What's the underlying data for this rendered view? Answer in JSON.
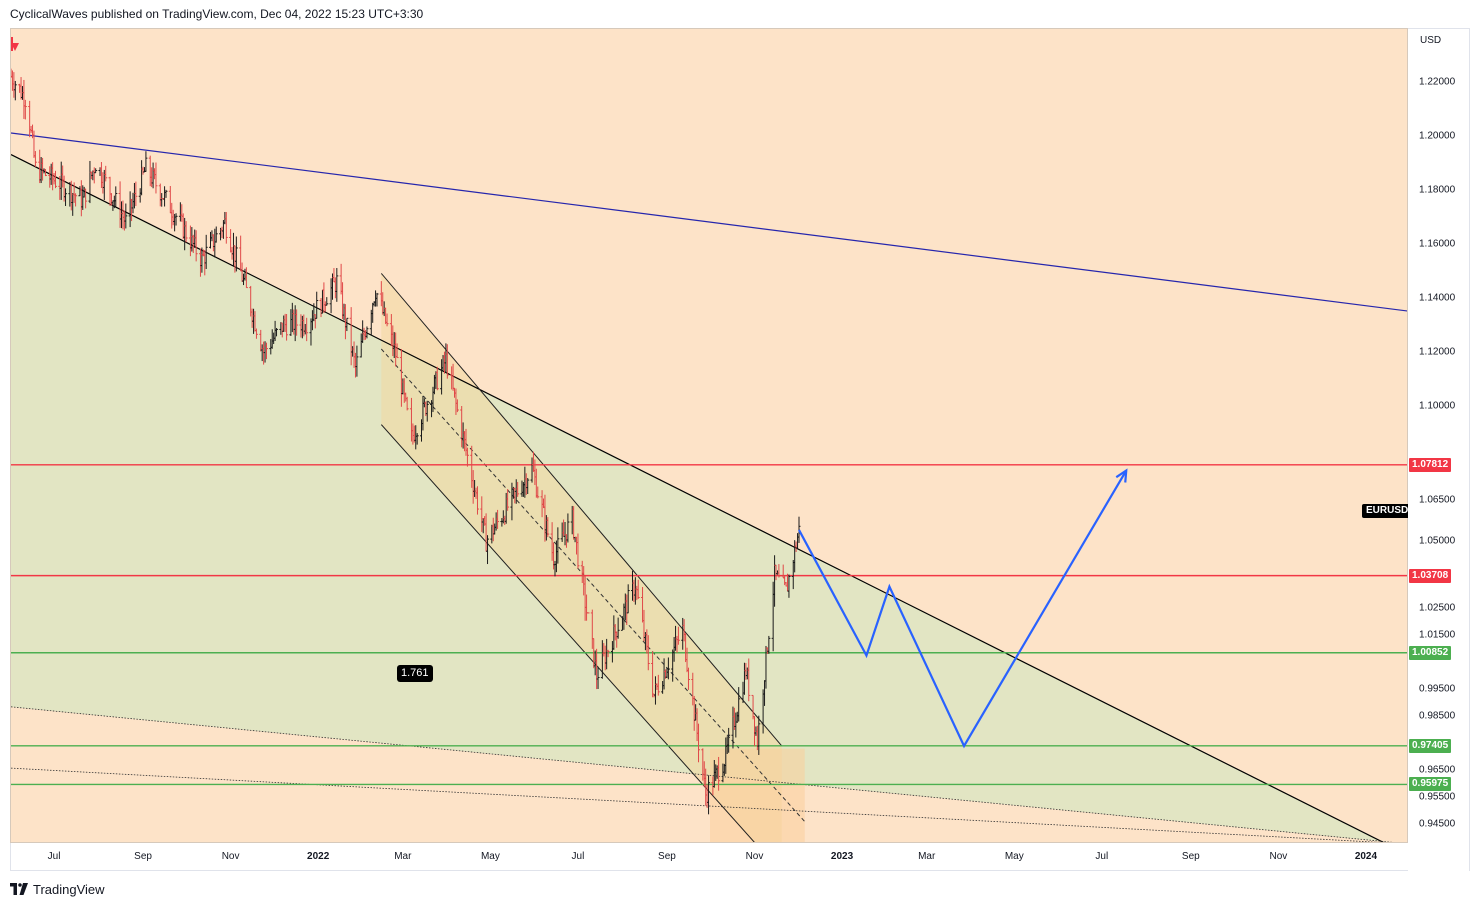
{
  "header": {
    "text": "CyclicalWaves published on TradingView.com, Dec 04, 2022 15:23 UTC+3:30"
  },
  "footer": {
    "brand": "TradingView",
    "logo_icon": "tradingview-logo-icon"
  },
  "symbol": "EURUSD",
  "chart_data": {
    "type": "candlestick",
    "title": "",
    "currency": "USD",
    "timeframe": "daily",
    "x_range": [
      "2021-06-01",
      "2024-01-31"
    ],
    "y_range": [
      0.9377,
      1.2395
    ],
    "x_ticks": [
      {
        "label": "Jul",
        "date": "2021-07-01",
        "bold": false
      },
      {
        "label": "Sep",
        "date": "2021-09-01",
        "bold": false
      },
      {
        "label": "Nov",
        "date": "2021-11-01",
        "bold": false
      },
      {
        "label": "2022",
        "date": "2022-01-01",
        "bold": true
      },
      {
        "label": "Mar",
        "date": "2022-03-01",
        "bold": false
      },
      {
        "label": "May",
        "date": "2022-05-01",
        "bold": false
      },
      {
        "label": "Jul",
        "date": "2022-07-01",
        "bold": false
      },
      {
        "label": "Sep",
        "date": "2022-09-01",
        "bold": false
      },
      {
        "label": "Nov",
        "date": "2022-11-01",
        "bold": false
      },
      {
        "label": "2023",
        "date": "2023-01-01",
        "bold": true
      },
      {
        "label": "Mar",
        "date": "2023-03-01",
        "bold": false
      },
      {
        "label": "May",
        "date": "2023-05-01",
        "bold": false
      },
      {
        "label": "Jul",
        "date": "2023-07-01",
        "bold": false
      },
      {
        "label": "Sep",
        "date": "2023-09-01",
        "bold": false
      },
      {
        "label": "Nov",
        "date": "2023-11-01",
        "bold": false
      },
      {
        "label": "2024",
        "date": "2024-01-01",
        "bold": true
      }
    ],
    "y_ticks": [
      {
        "label": "1.22000",
        "value": 1.22
      },
      {
        "label": "1.20000",
        "value": 1.2
      },
      {
        "label": "1.18000",
        "value": 1.18
      },
      {
        "label": "1.16000",
        "value": 1.16
      },
      {
        "label": "1.14000",
        "value": 1.14
      },
      {
        "label": "1.12000",
        "value": 1.12
      },
      {
        "label": "1.10000",
        "value": 1.1
      },
      {
        "label": "1.06500",
        "value": 1.065
      },
      {
        "label": "1.05000",
        "value": 1.05
      },
      {
        "label": "1.02500",
        "value": 1.025
      },
      {
        "label": "1.01500",
        "value": 1.015
      },
      {
        "label": "0.99500",
        "value": 0.995
      },
      {
        "label": "0.98500",
        "value": 0.985
      },
      {
        "label": "0.96500",
        "value": 0.965
      },
      {
        "label": "0.95500",
        "value": 0.955
      },
      {
        "label": "0.94500",
        "value": 0.945
      }
    ],
    "horizontal_levels": [
      {
        "label": "1.07812",
        "value": 1.07812,
        "color": "#f23645"
      },
      {
        "label": "1.03708",
        "value": 1.03708,
        "color": "#f23645"
      },
      {
        "label": "1.00852",
        "value": 1.00852,
        "color": "#4caf50"
      },
      {
        "label": "0.97405",
        "value": 0.97405,
        "color": "#4caf50"
      },
      {
        "label": "0.95975",
        "value": 0.95975,
        "color": "#4caf50"
      }
    ],
    "price_path": [
      [
        "2021-06-01",
        1.222
      ],
      [
        "2021-06-12",
        1.213
      ],
      [
        "2021-06-18",
        1.188
      ],
      [
        "2021-07-06",
        1.182
      ],
      [
        "2021-07-21",
        1.176
      ],
      [
        "2021-07-30",
        1.19
      ],
      [
        "2021-08-20",
        1.168
      ],
      [
        "2021-09-03",
        1.188
      ],
      [
        "2021-09-22",
        1.172
      ],
      [
        "2021-10-12",
        1.154
      ],
      [
        "2021-10-28",
        1.168
      ],
      [
        "2021-11-10",
        1.146
      ],
      [
        "2021-11-24",
        1.12
      ],
      [
        "2021-12-08",
        1.13
      ],
      [
        "2021-12-24",
        1.131
      ],
      [
        "2022-01-14",
        1.146
      ],
      [
        "2022-01-27",
        1.114
      ],
      [
        "2022-02-10",
        1.143
      ],
      [
        "2022-02-24",
        1.119
      ],
      [
        "2022-03-07",
        1.088
      ],
      [
        "2022-03-31",
        1.117
      ],
      [
        "2022-04-28",
        1.05
      ],
      [
        "2022-05-30",
        1.077
      ],
      [
        "2022-06-14",
        1.044
      ],
      [
        "2022-06-27",
        1.058
      ],
      [
        "2022-07-14",
        1.0
      ],
      [
        "2022-08-10",
        1.034
      ],
      [
        "2022-08-23",
        0.993
      ],
      [
        "2022-09-12",
        1.017
      ],
      [
        "2022-09-28",
        0.956
      ],
      [
        "2022-10-12",
        0.97
      ],
      [
        "2022-10-26",
        1.002
      ],
      [
        "2022-11-03",
        0.976
      ],
      [
        "2022-11-15",
        1.037
      ],
      [
        "2022-11-23",
        1.031
      ],
      [
        "2022-12-02",
        1.054
      ]
    ],
    "projection": [
      [
        "2022-12-02",
        1.054
      ],
      [
        "2023-01-18",
        1.0075
      ],
      [
        "2023-02-03",
        1.033
      ],
      [
        "2023-03-27",
        0.974
      ],
      [
        "2023-07-18",
        1.076
      ]
    ],
    "trendlines": [
      {
        "name": "upper-resistance-line",
        "color": "#2626ad",
        "from": [
          "2021-06-01",
          1.201
        ],
        "to": [
          "2024-01-31",
          1.135
        ]
      },
      {
        "name": "descending-support-line",
        "color": "#000000",
        "from": [
          "2021-06-01",
          1.193
        ],
        "to": [
          "2024-01-18",
          0.937
        ]
      },
      {
        "name": "lower-dotted-line-1",
        "color": "#333333",
        "from": [
          "2021-06-01",
          0.9885
        ],
        "to": [
          "2024-01-31",
          0.9377
        ]
      },
      {
        "name": "lower-dotted-line-2",
        "color": "#333333",
        "from": [
          "2021-06-01",
          0.9658
        ],
        "to": [
          "2024-01-31",
          0.9377
        ]
      }
    ],
    "channel": {
      "upper": {
        "from": [
          "2022-02-14",
          1.149
        ],
        "to": [
          "2022-11-20",
          0.974
        ]
      },
      "lower": {
        "from": [
          "2022-02-14",
          1.093
        ],
        "to": [
          "2022-11-02",
          0.9377
        ]
      },
      "mid": {
        "from": [
          "2022-02-14",
          1.121
        ],
        "to": [
          "2022-12-06",
          0.946
        ]
      }
    },
    "annotations": [
      {
        "label": "1.761"
      }
    ]
  }
}
